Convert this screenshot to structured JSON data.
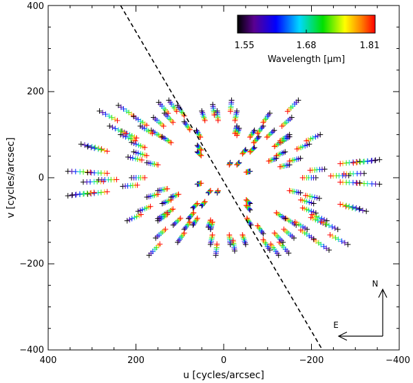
{
  "chart_data": {
    "type": "scatter",
    "xlabel": "u [cycles/arcsec]",
    "ylabel": "v [cycles/arcsec]",
    "xlim": [
      400,
      -400
    ],
    "ylim": [
      -400,
      400
    ],
    "x_ticks": [
      "400",
      "200",
      "0",
      "−200",
      "−400"
    ],
    "y_ticks": [
      "400",
      "200",
      "0",
      "−200",
      "−400"
    ],
    "x_tick_values": [
      400,
      200,
      0,
      -200,
      -400
    ],
    "y_tick_values": [
      400,
      200,
      0,
      -200,
      -400
    ],
    "grid": false,
    "marker": "+",
    "colorbar": {
      "label": "Wavelength [μm]",
      "min_label": "1.55",
      "mid_label": "1.68",
      "max_label": "1.81",
      "vmin": 1.55,
      "vmax": 1.81,
      "colormap": "rainbow",
      "placement": "top-right"
    },
    "compass": {
      "north": "N",
      "east": "E",
      "placement": "bottom-right"
    },
    "dashed_line": {
      "from": [
        235,
        400
      ],
      "to": [
        -225,
        -400
      ]
    },
    "wavelengths": [
      1.55,
      1.59,
      1.63,
      1.68,
      1.72,
      1.77,
      1.81
    ],
    "baselines_uv_at_1_55um": [
      [
        355,
        -42
      ],
      [
        310,
        -38
      ],
      [
        355,
        15
      ],
      [
        310,
        12
      ],
      [
        325,
        78
      ],
      [
        310,
        72
      ],
      [
        283,
        155
      ],
      [
        240,
        168
      ],
      [
        232,
        108
      ],
      [
        205,
        142
      ],
      [
        210,
        82
      ],
      [
        218,
        48
      ],
      [
        148,
        175
      ],
      [
        165,
        110
      ],
      [
        140,
        95
      ],
      [
        105,
        168
      ],
      [
        175,
        -45
      ],
      [
        195,
        -78
      ],
      [
        210,
        0
      ],
      [
        220,
        -100
      ],
      [
        230,
        -20
      ],
      [
        155,
        -140
      ],
      [
        170,
        -180
      ],
      [
        150,
        -100
      ],
      [
        140,
        -60
      ],
      [
        70,
        -110
      ],
      [
        50,
        -65
      ],
      [
        35,
        -115
      ],
      [
        18,
        -180
      ],
      [
        -25,
        -170
      ],
      [
        -60,
        -60
      ],
      [
        -62,
        -110
      ],
      [
        -60,
        15
      ],
      [
        -70,
        70
      ],
      [
        -80,
        95
      ],
      [
        -90,
        120
      ],
      [
        -105,
        150
      ],
      [
        -115,
        110
      ],
      [
        -120,
        45
      ],
      [
        -135,
        85
      ],
      [
        -150,
        95
      ],
      [
        -150,
        30
      ],
      [
        -175,
        -35
      ],
      [
        -205,
        -60
      ],
      [
        -235,
        -100
      ],
      [
        -260,
        -120
      ],
      [
        -90,
        -130
      ],
      [
        -125,
        -180
      ],
      [
        -135,
        -150
      ],
      [
        -160,
        -140
      ],
      [
        -190,
        -120
      ],
      [
        -30,
        155
      ],
      [
        15,
        155
      ],
      [
        50,
        155
      ],
      [
        60,
        75
      ],
      [
        -30,
        120
      ],
      [
        -35,
        35
      ],
      [
        15,
        -35
      ],
      [
        -345,
        40
      ],
      [
        -320,
        10
      ],
      [
        -285,
        5
      ]
    ],
    "notes_units": "Point positions for other wavelengths scale as (1.55 / wavelength) times the 1.55 μm position."
  }
}
